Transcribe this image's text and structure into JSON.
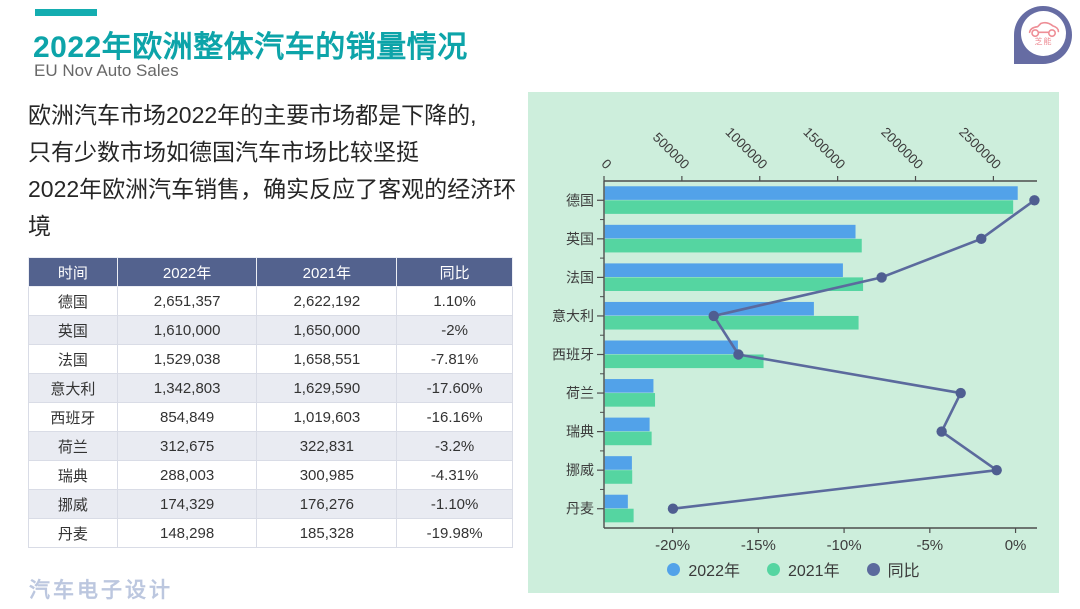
{
  "header": {
    "title": "2022年欧洲整体汽车的销量情况",
    "subtitle": "EU Nov Auto Sales",
    "logo_text": "芝能"
  },
  "description": {
    "line1": "欧洲汽车市场2022年的主要市场都是下降的,",
    "line2": "只有少数市场如德国汽车市场比较坚挺",
    "line3": "2022年欧洲汽车销售，确实反应了客观的经济环境"
  },
  "table": {
    "headers": [
      "时间",
      "2022年",
      "2021年",
      "同比"
    ],
    "rows": [
      {
        "country": "德国",
        "y2022": "2,651,357",
        "y2021": "2,622,192",
        "yoy": "1.10%"
      },
      {
        "country": "英国",
        "y2022": "1,610,000",
        "y2021": "1,650,000",
        "yoy": "-2%"
      },
      {
        "country": "法国",
        "y2022": "1,529,038",
        "y2021": "1,658,551",
        "yoy": "-7.81%"
      },
      {
        "country": "意大利",
        "y2022": "1,342,803",
        "y2021": "1,629,590",
        "yoy": "-17.60%"
      },
      {
        "country": "西班牙",
        "y2022": "854,849",
        "y2021": "1,019,603",
        "yoy": "-16.16%"
      },
      {
        "country": "荷兰",
        "y2022": "312,675",
        "y2021": "322,831",
        "yoy": "-3.2%"
      },
      {
        "country": "瑞典",
        "y2022": "288,003",
        "y2021": "300,985",
        "yoy": "-4.31%"
      },
      {
        "country": "挪威",
        "y2022": "174,329",
        "y2021": "176,276",
        "yoy": "-1.10%"
      },
      {
        "country": "丹麦",
        "y2022": "148,298",
        "y2021": "185,328",
        "yoy": "-19.98%"
      }
    ]
  },
  "chart_data": {
    "type": "bar",
    "orientation": "horizontal",
    "title": "",
    "categories": [
      "德国",
      "英国",
      "法国",
      "意大利",
      "西班牙",
      "荷兰",
      "瑞典",
      "挪威",
      "丹麦"
    ],
    "series": [
      {
        "name": "2022年",
        "kind": "bar",
        "color": "#52a2e9",
        "values": [
          2651357,
          1610000,
          1529038,
          1342803,
          854849,
          312675,
          288003,
          174329,
          148298
        ]
      },
      {
        "name": "2021年",
        "kind": "bar",
        "color": "#55d5a1",
        "values": [
          2622192,
          1650000,
          1658551,
          1629590,
          1019603,
          322831,
          300985,
          176276,
          185328
        ]
      },
      {
        "name": "同比",
        "kind": "line",
        "color": "#5b6a9d",
        "marker_color": "#4f5e91",
        "values": [
          1.1,
          -2,
          -7.81,
          -17.6,
          -16.16,
          -3.2,
          -4.31,
          -1.1,
          -19.98
        ]
      }
    ],
    "value_axis_top": {
      "ticks": [
        0,
        500000,
        1000000,
        1500000,
        2000000,
        2500000
      ],
      "labels": [
        "0",
        "500000",
        "1000000",
        "1500000",
        "2000000",
        "2500000"
      ],
      "range": [
        0,
        2780000
      ],
      "label_rotation_deg": 45
    },
    "percent_axis_bottom": {
      "ticks": [
        -20,
        -15,
        -10,
        -5,
        0
      ],
      "labels": [
        "-20%",
        "-15%",
        "-10%",
        "-5%",
        "0%"
      ],
      "range": [
        -24,
        1.25
      ]
    },
    "legend": [
      {
        "label": "2022年",
        "color": "#52a2e9"
      },
      {
        "label": "2021年",
        "color": "#55d5a1"
      },
      {
        "label": "同比",
        "color": "#5b6a9d"
      }
    ],
    "background": "#cdeedc",
    "grid": false,
    "legend_position": "bottom-center"
  },
  "footer": {
    "watermark": "汽车电子设计"
  },
  "colors": {
    "teal": "#0da4a9",
    "accent_bar": "#14adb0",
    "table_header_bg": "#53628e",
    "table_row_alt": "#e9ebf2",
    "chart_bg": "#cdeedc",
    "bar_2022": "#52a2e9",
    "bar_2021": "#55d5a1",
    "line_yoy": "#5b6a9d",
    "watermark": "#b9c5de",
    "logo_purple": "#666ca3",
    "logo_pink": "#ee8e96"
  }
}
